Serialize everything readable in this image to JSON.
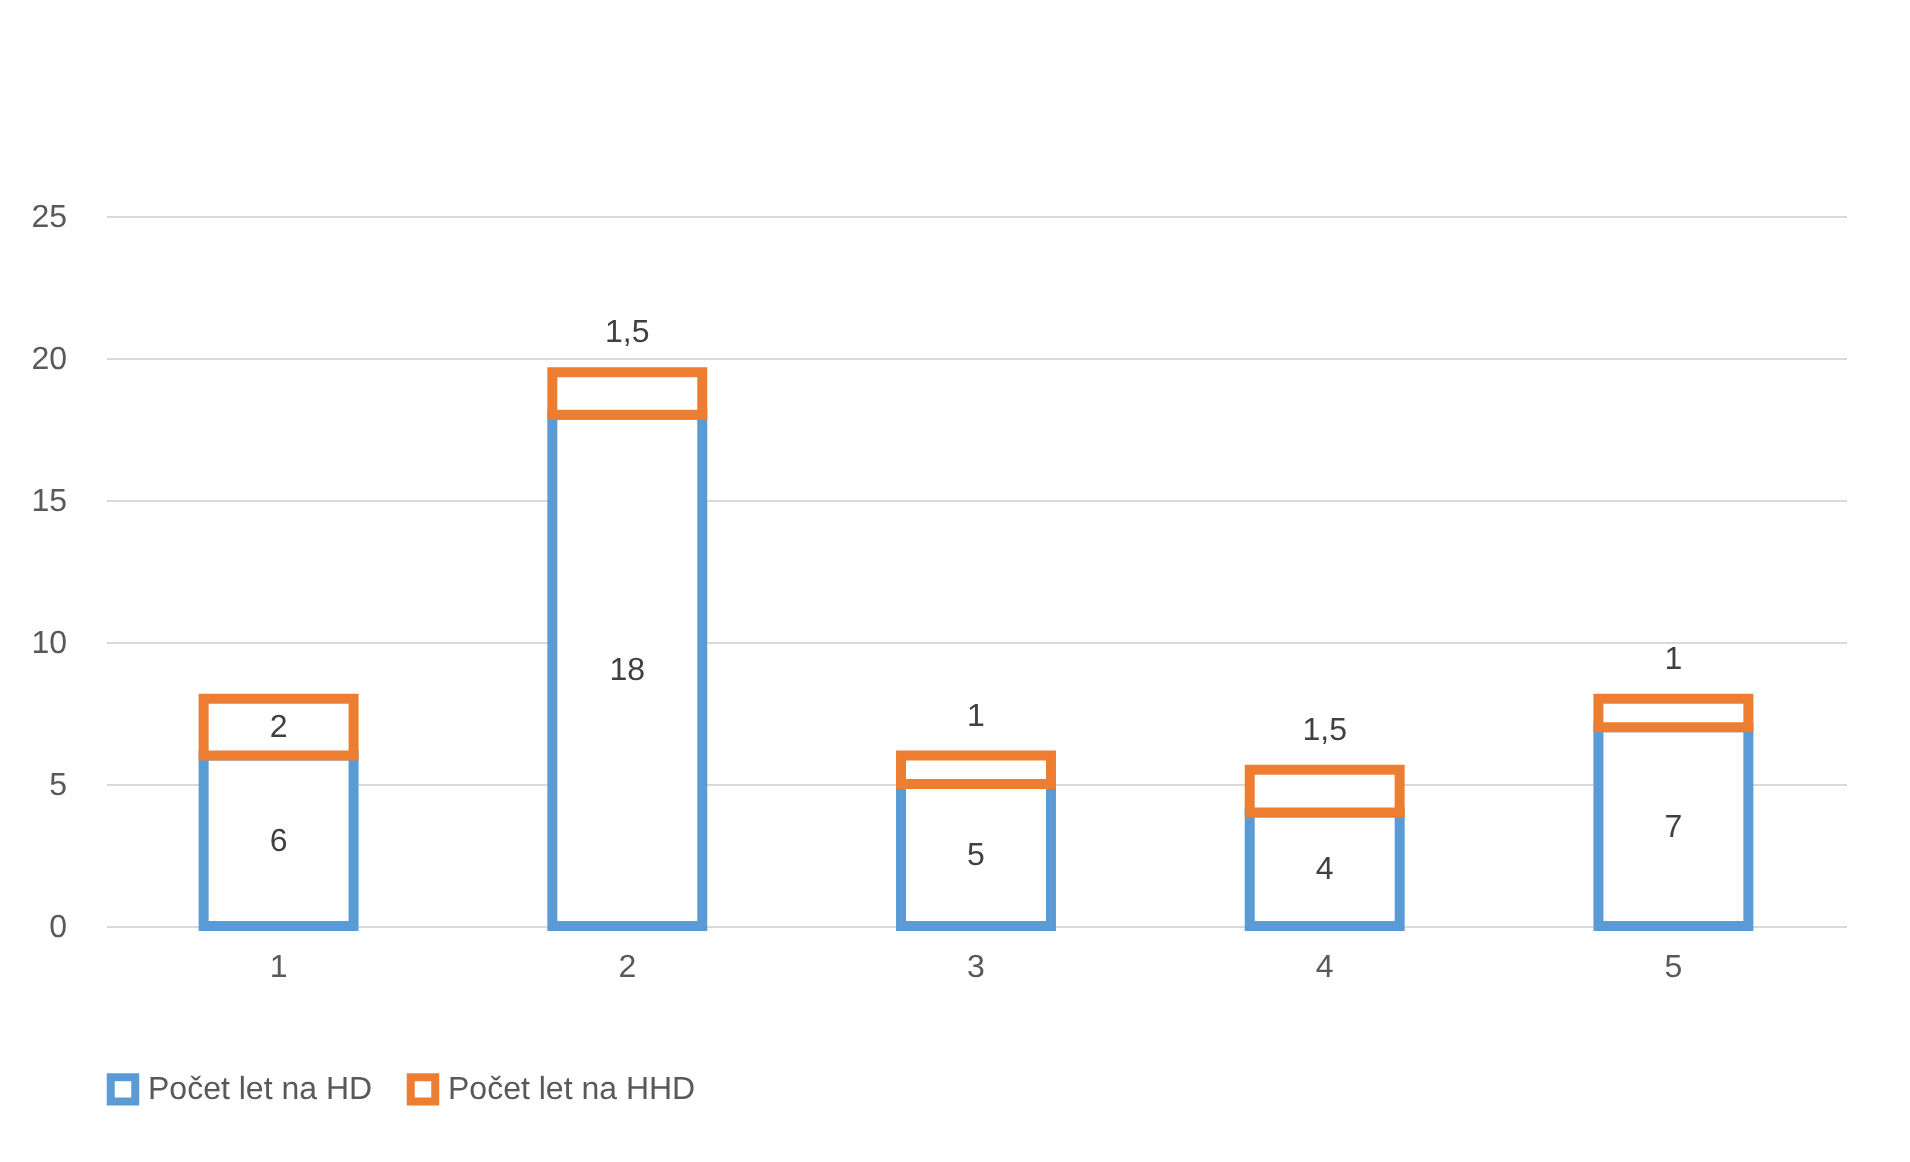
{
  "chart_data": {
    "type": "bar",
    "stacked": true,
    "categories": [
      "1",
      "2",
      "3",
      "4",
      "5"
    ],
    "series": [
      {
        "name": "Počet let na HD",
        "color": "#5b9bd5",
        "values": [
          6,
          18,
          5,
          4,
          7
        ],
        "value_labels": [
          "6",
          "18",
          "5",
          "4",
          "7"
        ]
      },
      {
        "name": "Počet let na HHD",
        "color": "#ed7d31",
        "values": [
          2,
          1.5,
          1,
          1.5,
          1
        ],
        "value_labels": [
          "2",
          "1,5",
          "1",
          "1,5",
          "1"
        ]
      }
    ],
    "ylim": [
      0,
      25
    ],
    "yticks": [
      0,
      5,
      10,
      15,
      20,
      25
    ],
    "grid": "y",
    "legend": "bottom"
  }
}
